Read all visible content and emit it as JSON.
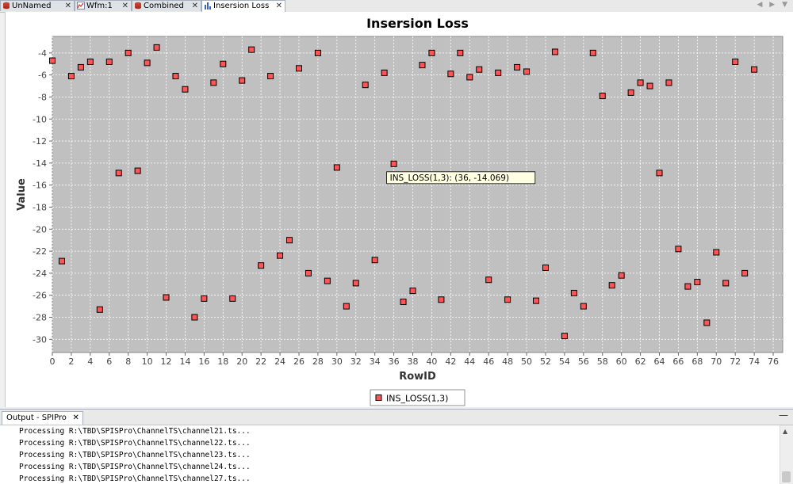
{
  "tabs": [
    {
      "label": "UnNamed",
      "icon": "database-icon",
      "active": false
    },
    {
      "label": "Wfm:1",
      "icon": "line-chart-icon",
      "active": false
    },
    {
      "label": "Combined",
      "icon": "database-icon",
      "active": false
    },
    {
      "label": "Insersion Loss",
      "icon": "bar-chart-icon",
      "active": true
    }
  ],
  "tab_close_glyph": "✕",
  "tab_nav": "◀ ▶ ▼",
  "chart_data": {
    "type": "scatter",
    "title": "Insersion Loss",
    "xlabel": "RowID",
    "ylabel": "Value",
    "xlim": [
      0,
      77
    ],
    "ylim": [
      -31.2,
      -2.5
    ],
    "xticks": [
      0,
      2,
      4,
      6,
      8,
      10,
      12,
      14,
      16,
      18,
      20,
      22,
      24,
      26,
      28,
      30,
      32,
      34,
      36,
      38,
      40,
      42,
      44,
      46,
      48,
      50,
      52,
      54,
      56,
      58,
      60,
      62,
      64,
      66,
      68,
      70,
      72,
      74,
      76
    ],
    "yticks": [
      -30,
      -28,
      -26,
      -24,
      -22,
      -20,
      -18,
      -16,
      -14,
      -12,
      -10,
      -8,
      -6,
      -4
    ],
    "grid": true,
    "legend": "bottom-center",
    "colors": {
      "plot_bg": "#c0c0c0",
      "marker": "#ff5555",
      "marker_edge": "#000000",
      "grid": "#ffffff"
    },
    "series": [
      {
        "name": "INS_LOSS(1,3)",
        "x": [
          0,
          1,
          2,
          3,
          4,
          5,
          6,
          7,
          8,
          9,
          10,
          11,
          12,
          13,
          14,
          15,
          16,
          17,
          18,
          19,
          20,
          21,
          22,
          23,
          24,
          25,
          26,
          27,
          28,
          29,
          30,
          31,
          32,
          33,
          34,
          35,
          36,
          37,
          38,
          39,
          40,
          41,
          42,
          43,
          44,
          45,
          46,
          47,
          48,
          49,
          50,
          51,
          52,
          53,
          54,
          55,
          56,
          57,
          58,
          59,
          60,
          61,
          62,
          63,
          64,
          65,
          66,
          67,
          68,
          69,
          70,
          71,
          72,
          73,
          74
        ],
        "y": [
          -4.7,
          -22.9,
          -6.1,
          -5.3,
          -4.8,
          -27.3,
          -4.8,
          -14.9,
          -4.0,
          -14.7,
          -4.9,
          -3.5,
          -26.2,
          -6.1,
          -7.3,
          -28.0,
          -26.3,
          -6.7,
          -5.0,
          -26.3,
          -6.5,
          -3.7,
          -23.3,
          -6.1,
          -22.4,
          -21.0,
          -5.4,
          -24.0,
          -4.0,
          -24.7,
          -14.4,
          -27.0,
          -24.9,
          -6.9,
          -22.8,
          -5.8,
          -14.069,
          -26.6,
          -25.6,
          -5.1,
          -4.0,
          -26.4,
          -5.9,
          -4.0,
          -6.2,
          -5.5,
          -24.6,
          -5.8,
          -26.4,
          -5.3,
          -5.7,
          -26.5,
          -23.5,
          -3.9,
          -29.7,
          -25.8,
          -27.0,
          -4.0,
          -7.9,
          -25.1,
          -24.2,
          -7.6,
          -6.7,
          -7.0,
          -14.9,
          -6.7,
          -21.8,
          -25.2,
          -24.8,
          -28.5,
          -22.1,
          -24.9,
          -4.8,
          -24.0,
          -5.5
        ]
      }
    ],
    "annotation": {
      "text": "INS_LOSS(1,3): (36, -14.069)",
      "x": 36,
      "y": -14.069
    }
  },
  "output": {
    "title": "Output - SPIPro",
    "close_glyph": "✕",
    "minimize_glyph": "—",
    "lines": [
      "Processing R:\\TBD\\SPISPro\\ChannelTS\\channel21.ts...",
      "Processing R:\\TBD\\SPISPro\\ChannelTS\\channel22.ts...",
      "Processing R:\\TBD\\SPISPro\\ChannelTS\\channel23.ts...",
      "Processing R:\\TBD\\SPISPro\\ChannelTS\\channel24.ts...",
      "Processing R:\\TBD\\SPISPro\\ChannelTS\\channel27.ts..."
    ]
  }
}
